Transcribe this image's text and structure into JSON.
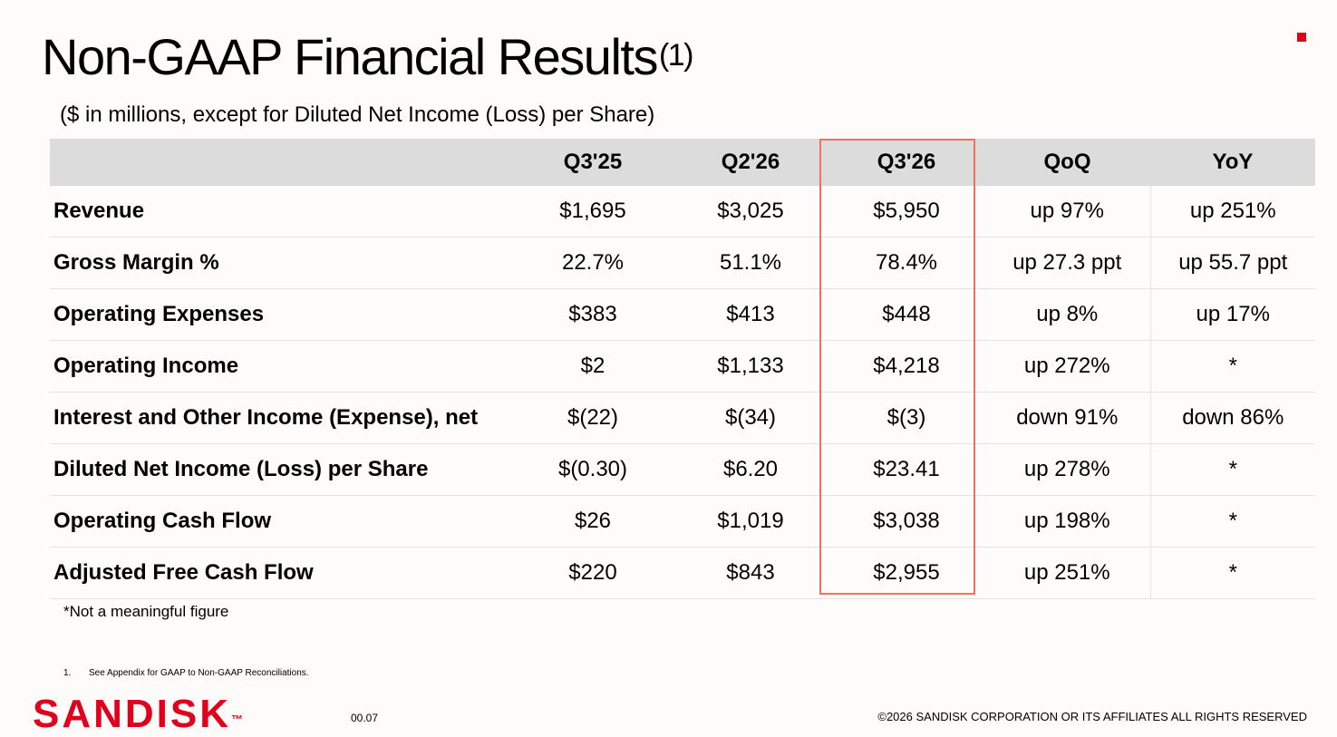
{
  "title": "Non-GAAP Financial Results",
  "title_superscript": "(1)",
  "subtitle": "($ in millions, except for Diluted Net Income (Loss) per Share)",
  "table": {
    "headers": [
      "",
      "Q3'25",
      "Q2'26",
      "Q3'26",
      "QoQ",
      "YoY"
    ],
    "highlighted_column": "Q3'26",
    "rows": [
      {
        "metric": "Revenue",
        "q3_25": "$1,695",
        "q2_26": "$3,025",
        "q3_26": "$5,950",
        "qoq": "up 97%",
        "yoy": "up 251%"
      },
      {
        "metric": "Gross Margin %",
        "q3_25": "22.7%",
        "q2_26": "51.1%",
        "q3_26": "78.4%",
        "qoq": "up 27.3 ppt",
        "yoy": "up 55.7 ppt"
      },
      {
        "metric": "Operating Expenses",
        "q3_25": "$383",
        "q2_26": "$413",
        "q3_26": "$448",
        "qoq": "up 8%",
        "yoy": "up 17%"
      },
      {
        "metric": "Operating Income",
        "q3_25": "$2",
        "q2_26": "$1,133",
        "q3_26": "$4,218",
        "qoq": "up 272%",
        "yoy": "*"
      },
      {
        "metric": "Interest and Other Income (Expense), net",
        "q3_25": "$(22)",
        "q2_26": "$(34)",
        "q3_26": "$(3)",
        "qoq": "down 91%",
        "yoy": "down 86%"
      },
      {
        "metric": "Diluted Net Income (Loss) per Share",
        "q3_25": "$(0.30)",
        "q2_26": "$6.20",
        "q3_26": "$23.41",
        "qoq": "up 278%",
        "yoy": "*"
      },
      {
        "metric": "Operating Cash Flow",
        "q3_25": "$26",
        "q2_26": "$1,019",
        "q3_26": "$3,038",
        "qoq": "up 198%",
        "yoy": "*"
      },
      {
        "metric": "Adjusted Free Cash Flow",
        "q3_25": "$220",
        "q2_26": "$843",
        "q3_26": "$2,955",
        "qoq": "up 251%",
        "yoy": "*"
      }
    ]
  },
  "footnote": "*Not a meaningful figure",
  "appendix_note": {
    "number": "1.",
    "text": "See Appendix for GAAP to Non-GAAP Reconciliations."
  },
  "logo": {
    "text": "SANDISK",
    "trademark": "™"
  },
  "page_number": "00.07",
  "copyright": "©2026 SANDISK CORPORATION OR ITS AFFILIATES ALL RIGHTS RESERVED",
  "colors": {
    "brand_red": "#e0001b",
    "highlight_border": "#f07064",
    "header_fill": "#dcdcdc",
    "background": "#fdfcfb"
  }
}
